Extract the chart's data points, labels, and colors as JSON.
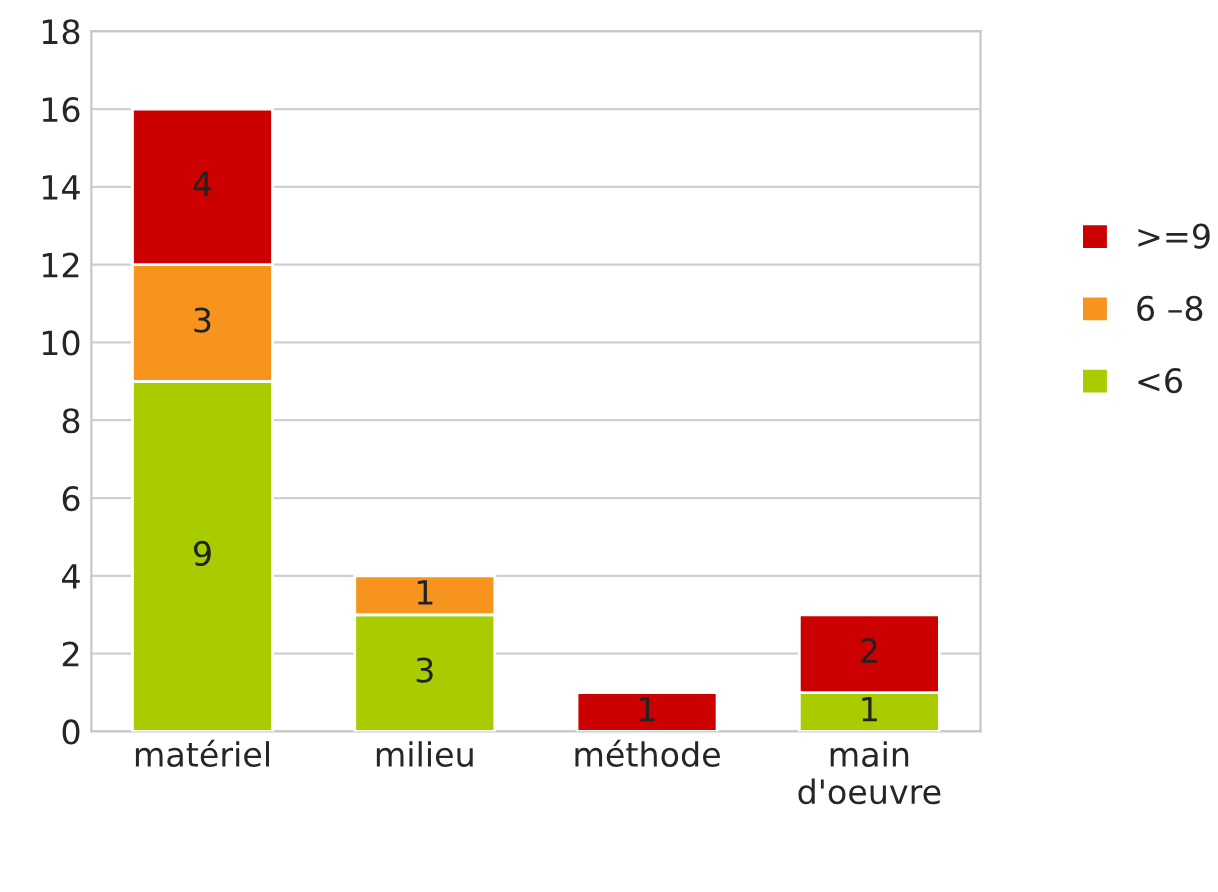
{
  "chart_data": {
    "type": "bar",
    "stacked": true,
    "categories": [
      "matériel",
      "milieu",
      "méthode",
      "main\nd'oeuvre"
    ],
    "series": [
      {
        "name": "<6",
        "color": "#a9cc00",
        "values": [
          9,
          3,
          null,
          1
        ],
        "value_labels": [
          "9",
          "3",
          null,
          "1"
        ]
      },
      {
        "name": "6 –8",
        "color": "#f7941d",
        "values": [
          3,
          1,
          null,
          null
        ],
        "value_labels": [
          "3",
          "1",
          null,
          null
        ]
      },
      {
        "name": ">=9",
        "color": "#cc0000",
        "values": [
          4,
          null,
          1,
          2
        ],
        "value_labels": [
          "4",
          null,
          "1",
          "2"
        ]
      }
    ],
    "ylim": [
      0,
      18
    ],
    "yticks": [
      0,
      2,
      4,
      6,
      8,
      10,
      12,
      14,
      16,
      18
    ],
    "grid": "y",
    "legend": "right"
  }
}
